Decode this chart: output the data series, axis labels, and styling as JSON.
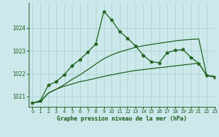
{
  "title": "Graphe pression niveau de la mer (hPa)",
  "background_color": "#cce8ea",
  "grid_color": "#aacccc",
  "xlim": [
    -0.5,
    23
  ],
  "ylim": [
    1020.55,
    1025.1
  ],
  "yticks": [
    1021,
    1022,
    1023,
    1024
  ],
  "xticks": [
    0,
    1,
    2,
    3,
    4,
    5,
    6,
    7,
    8,
    9,
    10,
    11,
    12,
    13,
    14,
    15,
    16,
    17,
    18,
    19,
    20,
    21,
    22,
    23
  ],
  "series": [
    {
      "x": [
        0,
        1,
        2,
        3,
        4,
        5,
        6,
        7,
        8,
        9,
        10,
        11,
        12,
        13,
        14,
        15,
        16,
        17,
        18,
        19,
        20,
        21,
        22,
        23
      ],
      "y": [
        1020.72,
        1020.78,
        1021.15,
        1021.32,
        1021.45,
        1021.55,
        1021.65,
        1021.72,
        1021.8,
        1021.88,
        1021.95,
        1022.02,
        1022.08,
        1022.14,
        1022.18,
        1022.22,
        1022.26,
        1022.3,
        1022.34,
        1022.38,
        1022.42,
        1022.46,
        1021.92,
        1021.88
      ],
      "color": "#1a5c1a",
      "lw": 0.9,
      "marker": null,
      "zorder": 2
    },
    {
      "x": [
        0,
        1,
        2,
        3,
        4,
        5,
        6,
        7,
        8,
        9,
        10,
        11,
        12,
        13,
        14,
        15,
        16,
        17,
        18,
        19,
        20,
        21,
        22,
        23
      ],
      "y": [
        1020.72,
        1020.78,
        1021.15,
        1021.32,
        1021.52,
        1021.75,
        1021.95,
        1022.18,
        1022.42,
        1022.65,
        1022.82,
        1022.95,
        1023.05,
        1023.15,
        1023.22,
        1023.28,
        1023.33,
        1023.38,
        1023.43,
        1023.47,
        1023.5,
        1023.52,
        1021.92,
        1021.88
      ],
      "color": "#1a5c1a",
      "lw": 0.9,
      "marker": null,
      "zorder": 2
    },
    {
      "x": [
        0,
        1,
        2,
        3,
        4,
        5,
        6,
        7,
        8,
        9,
        10,
        11,
        12,
        13,
        14,
        15,
        16,
        17,
        18,
        19,
        20,
        21,
        22,
        23
      ],
      "y": [
        1020.72,
        1020.82,
        1021.5,
        1021.65,
        1021.95,
        1022.35,
        1022.62,
        1022.95,
        1023.3,
        1024.72,
        1024.35,
        1023.85,
        1023.55,
        1023.22,
        1022.8,
        1022.52,
        1022.48,
        1022.92,
        1023.02,
        1023.05,
        1022.72,
        1022.45,
        1021.92,
        1021.85
      ],
      "color": "#226622",
      "lw": 1.0,
      "marker": "*",
      "markersize": 3.5,
      "zorder": 3
    }
  ]
}
